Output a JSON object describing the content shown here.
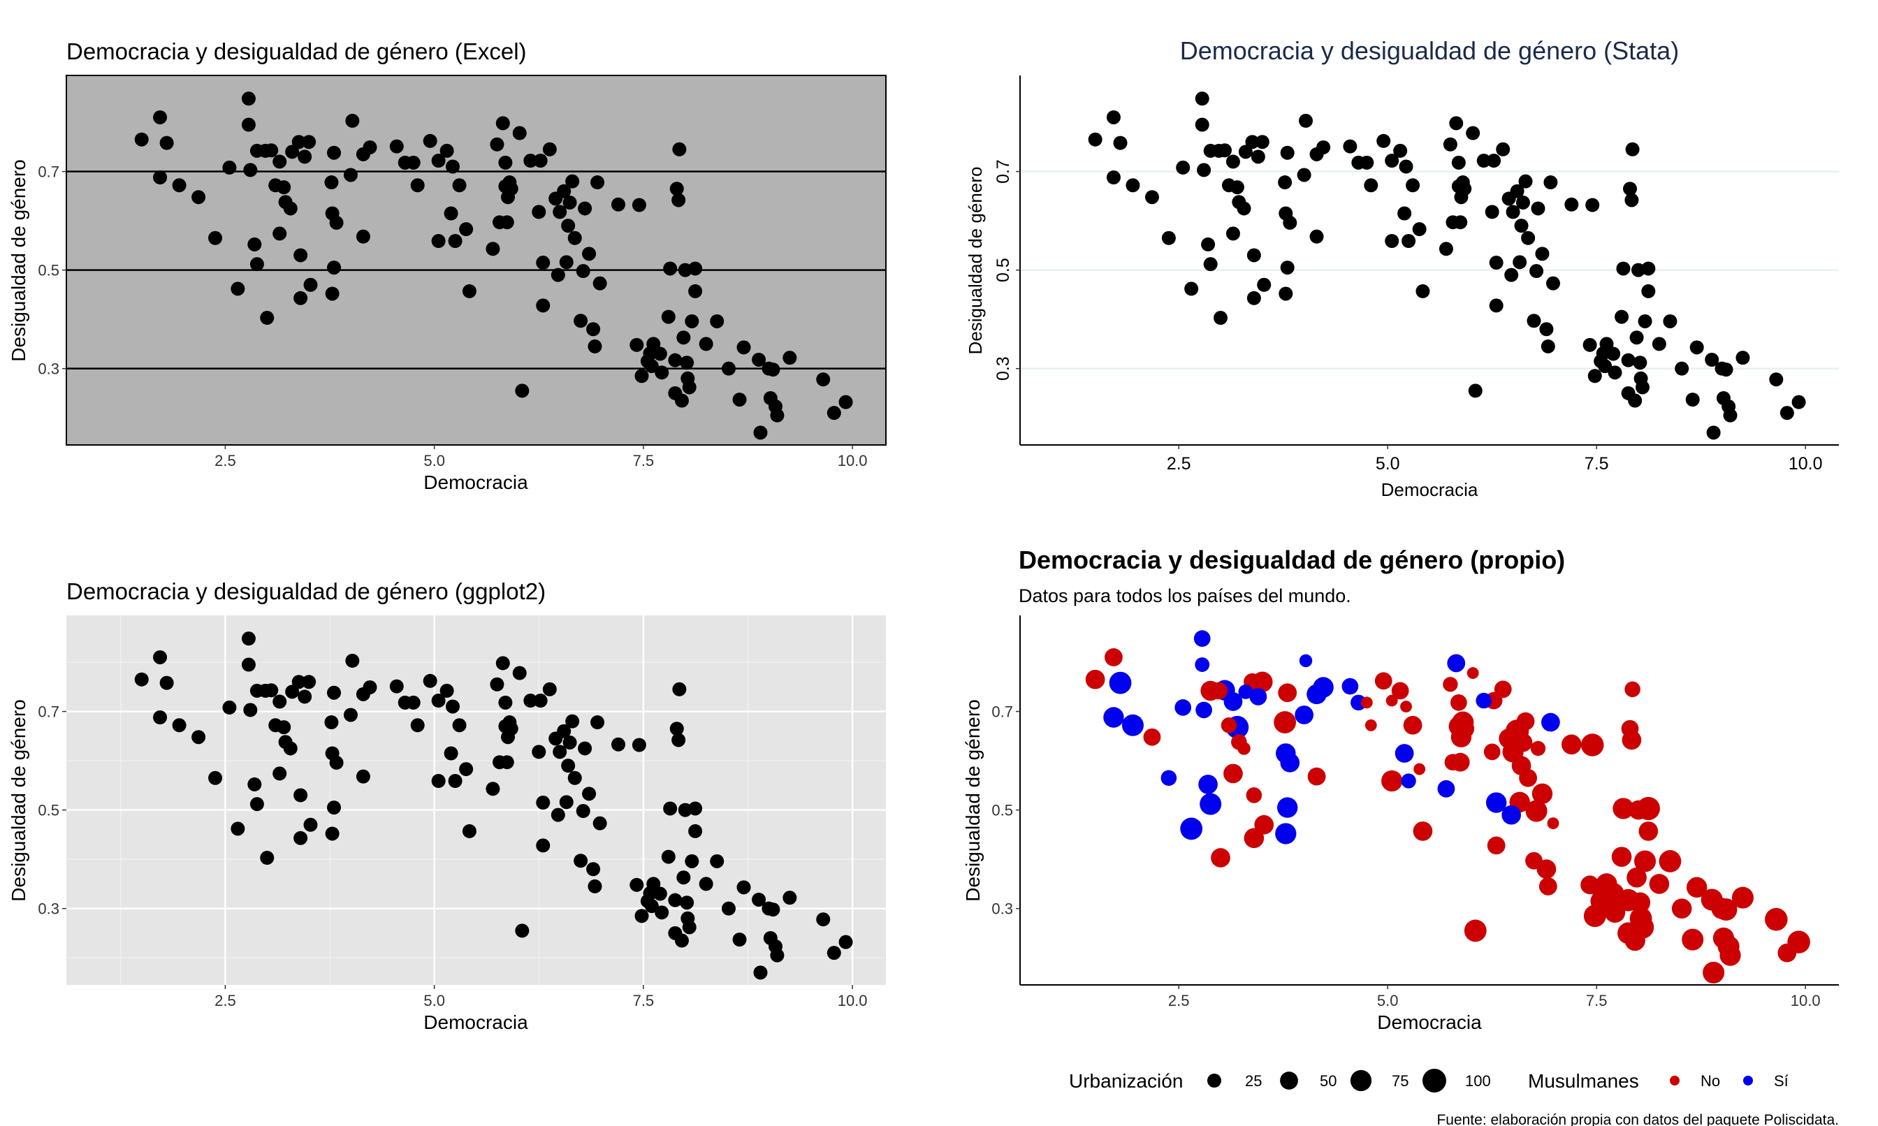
{
  "chart_data": [
    {
      "id": "excel",
      "type": "scatter",
      "title": "Democracia y desigualdad de género (Excel)",
      "xlabel": "Democracia",
      "ylabel": "Desigualdad de género",
      "xlim": [
        0.6,
        10.4
      ],
      "ylim": [
        0.145,
        0.895
      ],
      "xticks": [
        2.5,
        5.0,
        7.5,
        10.0
      ],
      "xtick_labels": [
        "2.5",
        "5.0",
        "7.5",
        "10.0"
      ],
      "yticks": [
        0.3,
        0.5,
        0.7
      ],
      "ytick_labels": [
        "0.3",
        "0.5",
        "0.7"
      ],
      "style": "excel"
    },
    {
      "id": "stata",
      "type": "scatter",
      "title": "Democracia y desigualdad de género (Stata)",
      "xlabel": "Democracia",
      "ylabel": "Desigualdad de género",
      "xlim": [
        0.6,
        10.4
      ],
      "ylim": [
        0.145,
        0.895
      ],
      "xticks": [
        2.5,
        5.0,
        7.5,
        10.0
      ],
      "xtick_labels": [
        "2.5",
        "5.0",
        "7.5",
        "10.0"
      ],
      "yticks": [
        0.3,
        0.5,
        0.7
      ],
      "ytick_labels": [
        "0.3",
        "0.5",
        "0.7"
      ],
      "style": "stata"
    },
    {
      "id": "ggplot2",
      "type": "scatter",
      "title": "Democracia y desigualdad de género (ggplot2)",
      "xlabel": "Democracia",
      "ylabel": "Desigualdad de género",
      "xlim": [
        0.6,
        10.4
      ],
      "ylim": [
        0.145,
        0.895
      ],
      "xticks": [
        2.5,
        5.0,
        7.5,
        10.0
      ],
      "xtick_labels": [
        "2.5",
        "5.0",
        "7.5",
        "10.0"
      ],
      "yticks": [
        0.3,
        0.5,
        0.7
      ],
      "ytick_labels": [
        "0.3",
        "0.5",
        "0.7"
      ],
      "style": "ggplot"
    },
    {
      "id": "propio",
      "type": "scatter",
      "title": "Democracia y desigualdad de género (propio)",
      "subtitle": "Datos para todos los países del mundo.",
      "xlabel": "Democracia",
      "ylabel": "Desigualdad de género",
      "xlim": [
        0.6,
        10.4
      ],
      "ylim": [
        0.145,
        0.895
      ],
      "xticks": [
        2.5,
        5.0,
        7.5,
        10.0
      ],
      "xtick_labels": [
        "2.5",
        "5.0",
        "7.5",
        "10.0"
      ],
      "yticks": [
        0.3,
        0.5,
        0.7
      ],
      "ytick_labels": [
        "0.3",
        "0.5",
        "0.7"
      ],
      "style": "propio",
      "legend_position": "bottom",
      "legend_size_title": "Urbanización",
      "legend_size_values": [
        25,
        50,
        75,
        100
      ],
      "legend_size_labels": [
        "25",
        "50",
        "75",
        "100"
      ],
      "legend_color_title": "Musulmanes",
      "legend_color_labels": [
        "No",
        "Sí"
      ],
      "colors": {
        "No": "#cc0000",
        "Sí": "#0000ee"
      },
      "caption": "Fuente: elaboración propia con datos del paquete Poliscidata."
    }
  ],
  "points": [
    {
      "x": 1.5,
      "y": 0.765,
      "urb": 60,
      "mus": 0
    },
    {
      "x": 1.72,
      "y": 0.81,
      "urb": 50,
      "mus": 0
    },
    {
      "x": 1.8,
      "y": 0.758,
      "urb": 85,
      "mus": 1
    },
    {
      "x": 1.72,
      "y": 0.688,
      "urb": 70,
      "mus": 1
    },
    {
      "x": 1.95,
      "y": 0.672,
      "urb": 80,
      "mus": 1
    },
    {
      "x": 2.18,
      "y": 0.648,
      "urb": 45,
      "mus": 0
    },
    {
      "x": 2.38,
      "y": 0.565,
      "urb": 35,
      "mus": 1
    },
    {
      "x": 2.55,
      "y": 0.708,
      "urb": 40,
      "mus": 1
    },
    {
      "x": 2.65,
      "y": 0.462,
      "urb": 85,
      "mus": 1
    },
    {
      "x": 2.78,
      "y": 0.848,
      "urb": 40,
      "mus": 1
    },
    {
      "x": 2.78,
      "y": 0.795,
      "urb": 28,
      "mus": 1
    },
    {
      "x": 2.8,
      "y": 0.703,
      "urb": 40,
      "mus": 1
    },
    {
      "x": 2.85,
      "y": 0.552,
      "urb": 60,
      "mus": 1
    },
    {
      "x": 2.88,
      "y": 0.742,
      "urb": 65,
      "mus": 0
    },
    {
      "x": 2.88,
      "y": 0.512,
      "urb": 80,
      "mus": 1
    },
    {
      "x": 2.98,
      "y": 0.742,
      "urb": 45,
      "mus": 0
    },
    {
      "x": 3.0,
      "y": 0.403,
      "urb": 60,
      "mus": 0
    },
    {
      "x": 3.05,
      "y": 0.743,
      "urb": 70,
      "mus": 1
    },
    {
      "x": 3.1,
      "y": 0.672,
      "urb": 35,
      "mus": 0
    },
    {
      "x": 3.15,
      "y": 0.72,
      "urb": 55,
      "mus": 1
    },
    {
      "x": 3.15,
      "y": 0.574,
      "urb": 60,
      "mus": 0
    },
    {
      "x": 3.2,
      "y": 0.668,
      "urb": 90,
      "mus": 1
    },
    {
      "x": 3.22,
      "y": 0.638,
      "urb": 35,
      "mus": 0
    },
    {
      "x": 3.28,
      "y": 0.625,
      "urb": 20,
      "mus": 0
    },
    {
      "x": 3.3,
      "y": 0.74,
      "urb": 28,
      "mus": 1
    },
    {
      "x": 3.38,
      "y": 0.76,
      "urb": 45,
      "mus": 0
    },
    {
      "x": 3.4,
      "y": 0.53,
      "urb": 35,
      "mus": 0
    },
    {
      "x": 3.4,
      "y": 0.443,
      "urb": 65,
      "mus": 0
    },
    {
      "x": 3.45,
      "y": 0.73,
      "urb": 45,
      "mus": 1
    },
    {
      "x": 3.5,
      "y": 0.76,
      "urb": 70,
      "mus": 0
    },
    {
      "x": 3.52,
      "y": 0.47,
      "urb": 60,
      "mus": 0
    },
    {
      "x": 3.77,
      "y": 0.678,
      "urb": 85,
      "mus": 0
    },
    {
      "x": 3.78,
      "y": 0.615,
      "urb": 65,
      "mus": 1
    },
    {
      "x": 3.8,
      "y": 0.505,
      "urb": 70,
      "mus": 1
    },
    {
      "x": 3.78,
      "y": 0.452,
      "urb": 75,
      "mus": 1
    },
    {
      "x": 3.8,
      "y": 0.738,
      "urb": 55,
      "mus": 0
    },
    {
      "x": 3.83,
      "y": 0.596,
      "urb": 60,
      "mus": 1
    },
    {
      "x": 4.0,
      "y": 0.693,
      "urb": 55,
      "mus": 1
    },
    {
      "x": 4.02,
      "y": 0.803,
      "urb": 20,
      "mus": 1
    },
    {
      "x": 4.15,
      "y": 0.568,
      "urb": 50,
      "mus": 0
    },
    {
      "x": 4.15,
      "y": 0.735,
      "urb": 65,
      "mus": 1
    },
    {
      "x": 4.23,
      "y": 0.749,
      "urb": 70,
      "mus": 1
    },
    {
      "x": 4.55,
      "y": 0.751,
      "urb": 40,
      "mus": 1
    },
    {
      "x": 4.65,
      "y": 0.718,
      "urb": 35,
      "mus": 1
    },
    {
      "x": 4.75,
      "y": 0.718,
      "urb": 15,
      "mus": 0
    },
    {
      "x": 4.8,
      "y": 0.672,
      "urb": 15,
      "mus": 0
    },
    {
      "x": 4.95,
      "y": 0.762,
      "urb": 45,
      "mus": 0
    },
    {
      "x": 5.05,
      "y": 0.722,
      "urb": 15,
      "mus": 0
    },
    {
      "x": 5.05,
      "y": 0.559,
      "urb": 75,
      "mus": 0
    },
    {
      "x": 5.15,
      "y": 0.742,
      "urb": 45,
      "mus": 0
    },
    {
      "x": 5.2,
      "y": 0.615,
      "urb": 55,
      "mus": 1
    },
    {
      "x": 5.22,
      "y": 0.71,
      "urb": 15,
      "mus": 0
    },
    {
      "x": 5.25,
      "y": 0.559,
      "urb": 30,
      "mus": 1
    },
    {
      "x": 5.3,
      "y": 0.672,
      "urb": 55,
      "mus": 0
    },
    {
      "x": 5.38,
      "y": 0.583,
      "urb": 15,
      "mus": 0
    },
    {
      "x": 5.42,
      "y": 0.457,
      "urb": 60,
      "mus": 0
    },
    {
      "x": 5.7,
      "y": 0.543,
      "urb": 45,
      "mus": 1
    },
    {
      "x": 5.75,
      "y": 0.755,
      "urb": 30,
      "mus": 0
    },
    {
      "x": 5.78,
      "y": 0.597,
      "urb": 40,
      "mus": 0
    },
    {
      "x": 5.82,
      "y": 0.798,
      "urb": 50,
      "mus": 1
    },
    {
      "x": 5.85,
      "y": 0.718,
      "urb": 40,
      "mus": 0
    },
    {
      "x": 5.85,
      "y": 0.67,
      "urb": 65,
      "mus": 0
    },
    {
      "x": 5.87,
      "y": 0.597,
      "urb": 55,
      "mus": 0
    },
    {
      "x": 5.88,
      "y": 0.648,
      "urb": 70,
      "mus": 0
    },
    {
      "x": 5.9,
      "y": 0.678,
      "urb": 80,
      "mus": 0
    },
    {
      "x": 5.92,
      "y": 0.665,
      "urb": 60,
      "mus": 0
    },
    {
      "x": 6.02,
      "y": 0.778,
      "urb": 15,
      "mus": 0
    },
    {
      "x": 6.05,
      "y": 0.255,
      "urb": 85,
      "mus": 0
    },
    {
      "x": 6.15,
      "y": 0.722,
      "urb": 35,
      "mus": 1
    },
    {
      "x": 6.25,
      "y": 0.618,
      "urb": 40,
      "mus": 0
    },
    {
      "x": 6.27,
      "y": 0.722,
      "urb": 45,
      "mus": 0
    },
    {
      "x": 6.3,
      "y": 0.515,
      "urb": 70,
      "mus": 1
    },
    {
      "x": 6.3,
      "y": 0.428,
      "urb": 50,
      "mus": 0
    },
    {
      "x": 6.38,
      "y": 0.745,
      "urb": 45,
      "mus": 0
    },
    {
      "x": 6.45,
      "y": 0.645,
      "urb": 65,
      "mus": 0
    },
    {
      "x": 6.48,
      "y": 0.49,
      "urb": 60,
      "mus": 1
    },
    {
      "x": 6.5,
      "y": 0.618,
      "urb": 75,
      "mus": 0
    },
    {
      "x": 6.55,
      "y": 0.66,
      "urb": 95,
      "mus": 0
    },
    {
      "x": 6.58,
      "y": 0.516,
      "urb": 70,
      "mus": 0
    },
    {
      "x": 6.6,
      "y": 0.59,
      "urb": 60,
      "mus": 0
    },
    {
      "x": 6.62,
      "y": 0.637,
      "urb": 55,
      "mus": 0
    },
    {
      "x": 6.65,
      "y": 0.68,
      "urb": 50,
      "mus": 0
    },
    {
      "x": 6.68,
      "y": 0.565,
      "urb": 50,
      "mus": 0
    },
    {
      "x": 6.75,
      "y": 0.397,
      "urb": 45,
      "mus": 0
    },
    {
      "x": 6.78,
      "y": 0.498,
      "urb": 80,
      "mus": 0
    },
    {
      "x": 6.8,
      "y": 0.625,
      "urb": 30,
      "mus": 0
    },
    {
      "x": 6.85,
      "y": 0.533,
      "urb": 70,
      "mus": 0
    },
    {
      "x": 6.9,
      "y": 0.38,
      "urb": 60,
      "mus": 0
    },
    {
      "x": 6.92,
      "y": 0.345,
      "urb": 50,
      "mus": 0
    },
    {
      "x": 6.95,
      "y": 0.678,
      "urb": 55,
      "mus": 1
    },
    {
      "x": 6.98,
      "y": 0.473,
      "urb": 15,
      "mus": 0
    },
    {
      "x": 7.2,
      "y": 0.633,
      "urb": 65,
      "mus": 0
    },
    {
      "x": 7.45,
      "y": 0.632,
      "urb": 90,
      "mus": 0
    },
    {
      "x": 7.42,
      "y": 0.348,
      "urb": 55,
      "mus": 0
    },
    {
      "x": 7.48,
      "y": 0.285,
      "urb": 85,
      "mus": 0
    },
    {
      "x": 7.55,
      "y": 0.315,
      "urb": 70,
      "mus": 0
    },
    {
      "x": 7.58,
      "y": 0.331,
      "urb": 80,
      "mus": 0
    },
    {
      "x": 7.6,
      "y": 0.305,
      "urb": 65,
      "mus": 0
    },
    {
      "x": 7.62,
      "y": 0.35,
      "urb": 75,
      "mus": 0
    },
    {
      "x": 7.7,
      "y": 0.33,
      "urb": 80,
      "mus": 0
    },
    {
      "x": 7.72,
      "y": 0.292,
      "urb": 70,
      "mus": 0
    },
    {
      "x": 7.8,
      "y": 0.405,
      "urb": 65,
      "mus": 0
    },
    {
      "x": 7.82,
      "y": 0.503,
      "urb": 75,
      "mus": 0
    },
    {
      "x": 7.88,
      "y": 0.317,
      "urb": 85,
      "mus": 0
    },
    {
      "x": 7.88,
      "y": 0.25,
      "urb": 80,
      "mus": 0
    },
    {
      "x": 7.9,
      "y": 0.665,
      "urb": 45,
      "mus": 0
    },
    {
      "x": 7.92,
      "y": 0.642,
      "urb": 60,
      "mus": 0
    },
    {
      "x": 7.93,
      "y": 0.745,
      "urb": 35,
      "mus": 0
    },
    {
      "x": 7.96,
      "y": 0.235,
      "urb": 70,
      "mus": 0
    },
    {
      "x": 7.98,
      "y": 0.363,
      "urb": 65,
      "mus": 0
    },
    {
      "x": 8.0,
      "y": 0.5,
      "urb": 60,
      "mus": 0
    },
    {
      "x": 8.02,
      "y": 0.312,
      "urb": 70,
      "mus": 0
    },
    {
      "x": 8.03,
      "y": 0.28,
      "urb": 85,
      "mus": 0
    },
    {
      "x": 8.05,
      "y": 0.262,
      "urb": 90,
      "mus": 0
    },
    {
      "x": 8.08,
      "y": 0.396,
      "urb": 80,
      "mus": 0
    },
    {
      "x": 8.12,
      "y": 0.503,
      "urb": 95,
      "mus": 0
    },
    {
      "x": 8.12,
      "y": 0.457,
      "urb": 60,
      "mus": 0
    },
    {
      "x": 8.25,
      "y": 0.35,
      "urb": 65,
      "mus": 0
    },
    {
      "x": 8.38,
      "y": 0.396,
      "urb": 85,
      "mus": 0
    },
    {
      "x": 8.52,
      "y": 0.3,
      "urb": 65,
      "mus": 0
    },
    {
      "x": 8.65,
      "y": 0.237,
      "urb": 80,
      "mus": 0
    },
    {
      "x": 8.7,
      "y": 0.343,
      "urb": 70,
      "mus": 0
    },
    {
      "x": 8.88,
      "y": 0.318,
      "urb": 80,
      "mus": 0
    },
    {
      "x": 8.9,
      "y": 0.17,
      "urb": 80,
      "mus": 0
    },
    {
      "x": 9.0,
      "y": 0.3,
      "urb": 75,
      "mus": 0
    },
    {
      "x": 9.02,
      "y": 0.24,
      "urb": 75,
      "mus": 0
    },
    {
      "x": 9.05,
      "y": 0.298,
      "urb": 85,
      "mus": 0
    },
    {
      "x": 9.08,
      "y": 0.223,
      "urb": 80,
      "mus": 0
    },
    {
      "x": 9.1,
      "y": 0.205,
      "urb": 75,
      "mus": 0
    },
    {
      "x": 9.25,
      "y": 0.322,
      "urb": 80,
      "mus": 0
    },
    {
      "x": 9.65,
      "y": 0.278,
      "urb": 90,
      "mus": 0
    },
    {
      "x": 9.78,
      "y": 0.21,
      "urb": 55,
      "mus": 0
    },
    {
      "x": 9.92,
      "y": 0.232,
      "urb": 90,
      "mus": 0
    }
  ]
}
